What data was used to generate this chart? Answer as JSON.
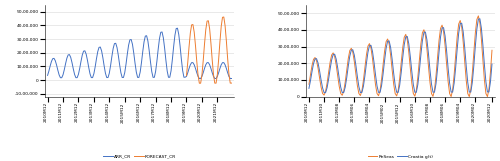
{
  "chart1": {
    "ylim_lo": -1000000,
    "ylim_hi": 5500000,
    "ytick_vals": [
      -1000000,
      0,
      1000000,
      2000000,
      3000000,
      4000000,
      5000000
    ],
    "ytick_labels": [
      "-10,00,000",
      "0",
      "10,00,000",
      "20,00,000",
      "30,00,000",
      "40,00,000",
      "50,00,000"
    ],
    "xtick_labels": [
      "2010M12",
      "2011M12",
      "2012M12",
      "2013M12",
      "2014M12",
      "2015M12",
      "2016M12",
      "2017M12",
      "2018M12",
      "2019M12",
      "2020M12",
      "2021M12"
    ],
    "color_arr": "#4472c4",
    "color_forecast": "#ed7d31",
    "legend_labels": [
      "ARR_CR",
      "FORECAST_CR"
    ],
    "bg_color": "#ffffff",
    "grid_color": "#d9d9d9"
  },
  "chart2": {
    "ylim_lo": 0,
    "ylim_hi": 5500000,
    "ytick_vals": [
      0,
      1000000,
      2000000,
      3000000,
      4000000,
      5000000
    ],
    "ytick_labels": [
      "0",
      "10,00,000",
      "20,00,000",
      "30,00,000",
      "40,00,000",
      "50,00,000"
    ],
    "xtick_labels": [
      "2010M12",
      "2011M10",
      "2012M08",
      "2013M06",
      "2014M04",
      "2015M02",
      "2015M12",
      "2016M10",
      "2017M08",
      "2018M06",
      "2019M04",
      "2020M02",
      "2020M12"
    ],
    "color_croatia": "#4472c4",
    "color_reseas": "#ed7d31",
    "legend_labels": [
      "Croatia g(t)",
      "ReSeas"
    ],
    "bg_color": "#ffffff",
    "grid_color": "#d9d9d9"
  }
}
